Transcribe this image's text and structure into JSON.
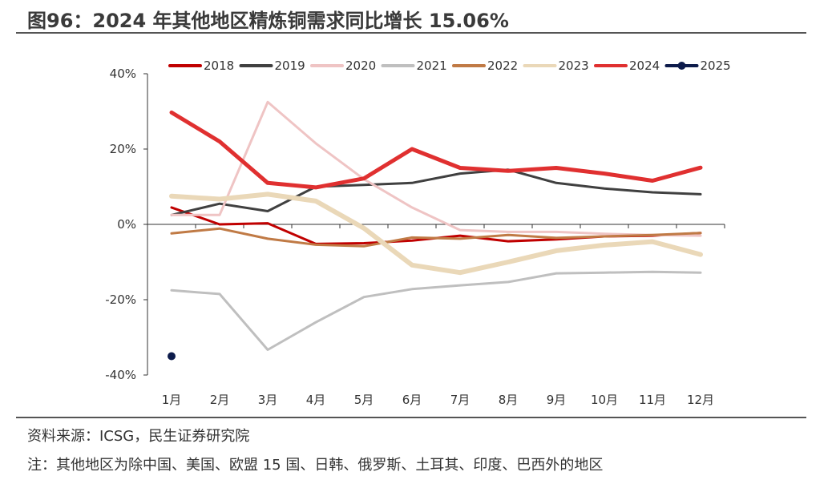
{
  "header": {
    "title": "图96：2024 年其他地区精炼铜需求同比增长 15.06%"
  },
  "footer": {
    "source": "资料来源：ICSG，民生证券研究院",
    "note": "注：其他地区为除中国、美国、欧盟 15 国、日韩、俄罗斯、土耳其、印度、巴西外的地区"
  },
  "chart_data": {
    "type": "line",
    "categories": [
      "1月",
      "2月",
      "3月",
      "4月",
      "5月",
      "6月",
      "7月",
      "8月",
      "9月",
      "10月",
      "11月",
      "12月"
    ],
    "ylim": [
      -40,
      40
    ],
    "yticks": [
      40,
      20,
      0,
      -20,
      -40
    ],
    "ytick_labels": [
      "40%",
      "20%",
      "0%",
      "-20%",
      "-40%"
    ],
    "legend_position": "top",
    "series": [
      {
        "name": "2018",
        "color": "#c00000",
        "width": 3,
        "marker": false,
        "values": [
          4.5,
          0,
          0.3,
          -5.2,
          -5,
          -4.3,
          -3,
          -4.5,
          -4,
          -3.2,
          -3,
          -2.3
        ]
      },
      {
        "name": "2019",
        "color": "#404040",
        "width": 3,
        "marker": false,
        "values": [
          2.5,
          5.5,
          3.5,
          10,
          10.5,
          11,
          13.5,
          14.5,
          11,
          9.5,
          8.5,
          8
        ]
      },
      {
        "name": "2020",
        "color": "#efc4c4",
        "width": 3,
        "marker": false,
        "values": [
          2.5,
          2.5,
          32.5,
          21.5,
          12,
          4.5,
          -1.5,
          -2,
          -2,
          -2.5,
          -2.8,
          -3
        ]
      },
      {
        "name": "2021",
        "color": "#bfbfbf",
        "width": 3,
        "marker": false,
        "values": [
          -17.5,
          -18.5,
          -33.3,
          -26,
          -19.3,
          -17.2,
          -16.2,
          -15.3,
          -13,
          -12.8,
          -12.6,
          -12.8
        ]
      },
      {
        "name": "2022",
        "color": "#c07a45",
        "width": 3,
        "marker": false,
        "values": [
          -2.4,
          -1.1,
          -3.8,
          -5.4,
          -5.8,
          -3.5,
          -3.8,
          -2.8,
          -3.6,
          -3.2,
          -2.8,
          -2.3
        ]
      },
      {
        "name": "2023",
        "color": "#ead8b8",
        "width": 6,
        "marker": false,
        "values": [
          7.5,
          6.7,
          8,
          6.2,
          -1,
          -10.8,
          -12.8,
          -10,
          -7,
          -5.5,
          -4.6,
          -8
        ]
      },
      {
        "name": "2024",
        "color": "#e03030",
        "width": 5,
        "marker": false,
        "values": [
          29.7,
          22,
          11,
          9.8,
          12.2,
          20,
          15,
          14.2,
          15,
          13.5,
          11.6,
          15.06
        ]
      },
      {
        "name": "2025",
        "color": "#0d1b4b",
        "width": 3,
        "marker": true,
        "values": [
          -35,
          null,
          null,
          null,
          null,
          null,
          null,
          null,
          null,
          null,
          null,
          null
        ]
      }
    ]
  }
}
